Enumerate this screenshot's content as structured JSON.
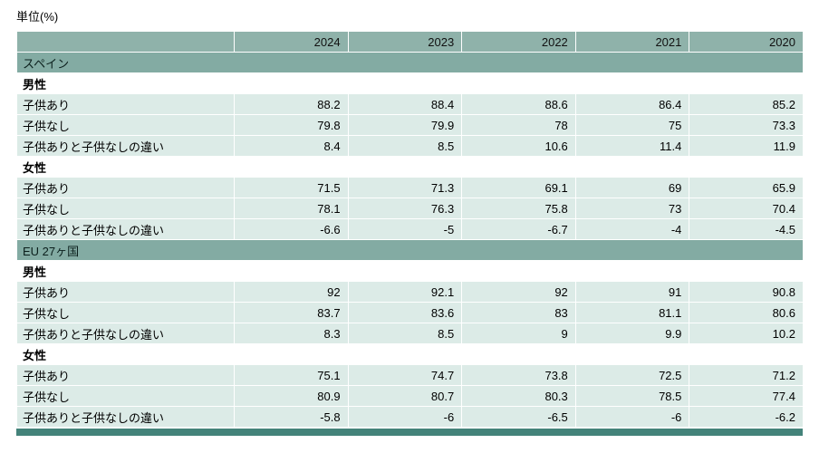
{
  "title": "単位(%)",
  "colors": {
    "header_bg": "#8fb2aa",
    "section_bg": "#83aba3",
    "row_bg": "#dcebe7",
    "bottom_bar": "#44837a"
  },
  "chart_data": {
    "type": "table",
    "unit_label": "単位(%)",
    "years": [
      "2024",
      "2023",
      "2022",
      "2021",
      "2020"
    ],
    "sections": [
      {
        "label": "スペイン",
        "groups": [
          {
            "label": "男性",
            "rows": [
              {
                "label": "子供あり",
                "values": [
                  "88.2",
                  "88.4",
                  "88.6",
                  "86.4",
                  "85.2"
                ]
              },
              {
                "label": "子供なし",
                "values": [
                  "79.8",
                  "79.9",
                  "78",
                  "75",
                  "73.3"
                ]
              },
              {
                "label": "子供ありと子供なしの違い",
                "values": [
                  "8.4",
                  "8.5",
                  "10.6",
                  "11.4",
                  "11.9"
                ]
              }
            ]
          },
          {
            "label": "女性",
            "rows": [
              {
                "label": "子供あり",
                "values": [
                  "71.5",
                  "71.3",
                  "69.1",
                  "69",
                  "65.9"
                ]
              },
              {
                "label": "子供なし",
                "values": [
                  "78.1",
                  "76.3",
                  "75.8",
                  "73",
                  "70.4"
                ]
              },
              {
                "label": "子供ありと子供なしの違い",
                "values": [
                  "-6.6",
                  "-5",
                  "-6.7",
                  "-4",
                  "-4.5"
                ]
              }
            ]
          }
        ]
      },
      {
        "label": "EU 27ヶ国",
        "groups": [
          {
            "label": "男性",
            "rows": [
              {
                "label": "子供あり",
                "values": [
                  "92",
                  "92.1",
                  "92",
                  "91",
                  "90.8"
                ]
              },
              {
                "label": "子供なし",
                "values": [
                  "83.7",
                  "83.6",
                  "83",
                  "81.1",
                  "80.6"
                ]
              },
              {
                "label": "子供ありと子供なしの違い",
                "values": [
                  "8.3",
                  "8.5",
                  "9",
                  "9.9",
                  "10.2"
                ]
              }
            ]
          },
          {
            "label": "女性",
            "rows": [
              {
                "label": "子供あり",
                "values": [
                  "75.1",
                  "74.7",
                  "73.8",
                  "72.5",
                  "71.2"
                ]
              },
              {
                "label": "子供なし",
                "values": [
                  "80.9",
                  "80.7",
                  "80.3",
                  "78.5",
                  "77.4"
                ]
              },
              {
                "label": "子供ありと子供なしの違い",
                "values": [
                  "-5.8",
                  "-6",
                  "-6.5",
                  "-6",
                  "-6.2"
                ]
              }
            ]
          }
        ]
      }
    ]
  }
}
